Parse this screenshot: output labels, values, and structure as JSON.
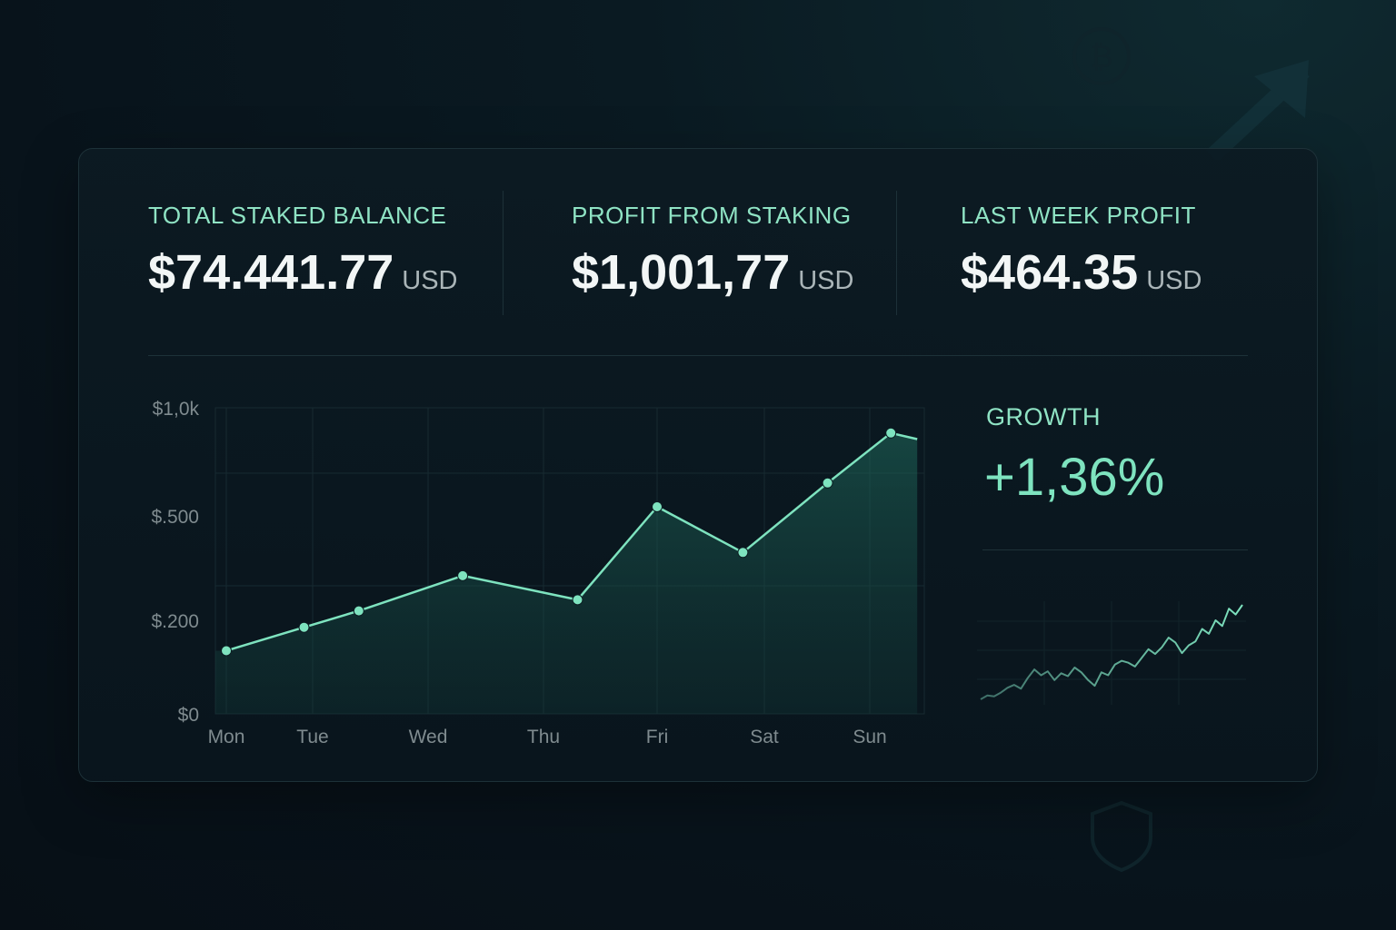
{
  "stats": [
    {
      "label": "TOTAL STAKED BALANCE",
      "value": "$74.441.77",
      "unit": "USD"
    },
    {
      "label": "PROFIT FROM STAKING",
      "value": "$1,001,77",
      "unit": "USD"
    },
    {
      "label": "LAST WEEK PROFIT",
      "value": "$464.35",
      "unit": "USD"
    }
  ],
  "growth": {
    "label": "GROWTH",
    "value": "+1,36%"
  },
  "colors": {
    "accent": "#7ee3bf",
    "label": "#8fe3c4",
    "background": "#08131b",
    "card_border": "#1d3138"
  },
  "icons": {
    "background_arrow": "trend-up-arrow-icon",
    "background_coin": "bitcoin-coin-icon",
    "background_shield": "shield-icon"
  },
  "chart_data": [
    {
      "type": "area",
      "title": "",
      "xlabel": "",
      "ylabel": "",
      "y_scale": "nonlinear",
      "y_ticks": [
        {
          "value": 0,
          "label": "$0"
        },
        {
          "value": 200,
          "label": "$.200"
        },
        {
          "value": 500,
          "label": "$.500"
        },
        {
          "value": 1000,
          "label": "$1,0k"
        }
      ],
      "x_tick_labels": [
        "Mon",
        "Tue",
        "Wed",
        "Thu",
        "Fri",
        "Sat",
        "Sun"
      ],
      "grid": true,
      "legend": "none",
      "series": [
        {
          "points": [
            {
              "x": 0.0,
              "y": 135
            },
            {
              "x": 0.9,
              "y": 185
            },
            {
              "x": 1.4,
              "y": 227
            },
            {
              "x": 2.3,
              "y": 328
            },
            {
              "x": 3.3,
              "y": 259
            },
            {
              "x": 4.0,
              "y": 542
            },
            {
              "x": 4.8,
              "y": 395
            },
            {
              "x": 5.6,
              "y": 652
            },
            {
              "x": 6.2,
              "y": 883
            },
            {
              "x": 6.45,
              "y": 855
            }
          ]
        }
      ]
    },
    {
      "type": "line",
      "title": "",
      "xlabel": "",
      "ylabel": "",
      "grid": true,
      "legend": "none",
      "x": [
        0,
        1,
        2,
        3,
        4,
        5,
        6,
        7,
        8,
        9,
        10,
        11,
        12,
        13,
        14,
        15,
        16,
        17,
        18,
        19,
        20,
        21,
        22,
        23,
        24,
        25,
        26,
        27,
        28,
        29,
        30,
        31,
        32,
        33,
        34,
        35,
        36,
        37,
        38,
        39
      ],
      "series": [
        {
          "values": [
            2,
            6,
            5,
            9,
            14,
            17,
            13,
            24,
            33,
            27,
            31,
            22,
            29,
            26,
            35,
            30,
            22,
            16,
            30,
            27,
            38,
            42,
            40,
            36,
            45,
            54,
            49,
            56,
            66,
            61,
            50,
            58,
            62,
            75,
            70,
            84,
            78,
            96,
            90,
            100
          ]
        }
      ]
    }
  ]
}
